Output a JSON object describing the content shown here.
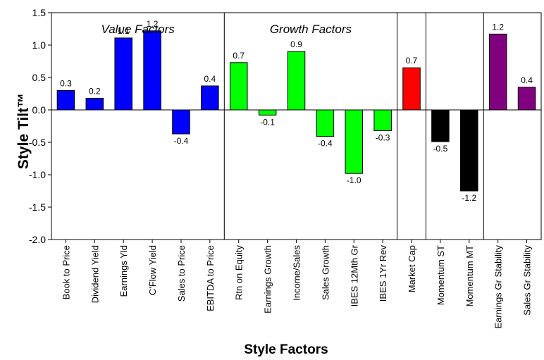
{
  "chart_data": {
    "type": "bar",
    "title": "",
    "xlabel": "Style Factors",
    "ylabel": "Style Tilt™",
    "ylim": [
      -2.0,
      1.5
    ],
    "yticks": [
      "1.5",
      "1.0",
      "0.5",
      "0.0",
      "-0.5",
      "-1.0",
      "-1.5",
      "-2.0"
    ],
    "grid": false,
    "legend": "none",
    "categories": [
      "Book to Price",
      "Dividend Yield",
      "Earnings Yld",
      "C'Flow Yield",
      "Sales to Price",
      "EBITDA to Price",
      "Rtn on Equity",
      "Earnings Growth",
      "Income/Sales",
      "Sales Growth",
      "IBES 12Mth Gr",
      "IBES 1Yr Rev",
      "Market Cap",
      "Momentum ST",
      "Momentum MT",
      "Earnings Gr Stability",
      "Sales Gr Stability"
    ],
    "values": [
      0.3,
      0.18,
      1.11,
      1.22,
      -0.37,
      0.37,
      0.73,
      -0.08,
      0.9,
      -0.41,
      -0.98,
      -0.32,
      0.65,
      -0.49,
      -1.25,
      1.17,
      0.35
    ],
    "data_labels": [
      "0.3",
      "0.2",
      "1.1",
      "1.2",
      "-0.4",
      "0.4",
      "0.7",
      "-0.1",
      "0.9",
      "-0.4",
      "-1.0",
      "-0.3",
      "0.7",
      "-0.5",
      "-1.2",
      "1.2",
      "0.4"
    ],
    "groups": [
      {
        "label": "Value Factors",
        "color": "#0000ff",
        "start": 0,
        "count": 6
      },
      {
        "label": "Growth Factors",
        "color": "#00ff00",
        "start": 6,
        "count": 6
      },
      {
        "label": "",
        "color": "#ff0000",
        "start": 12,
        "count": 1
      },
      {
        "label": "",
        "color": "#000000",
        "start": 13,
        "count": 2
      },
      {
        "label": "",
        "color": "#800080",
        "start": 15,
        "count": 2
      }
    ]
  }
}
